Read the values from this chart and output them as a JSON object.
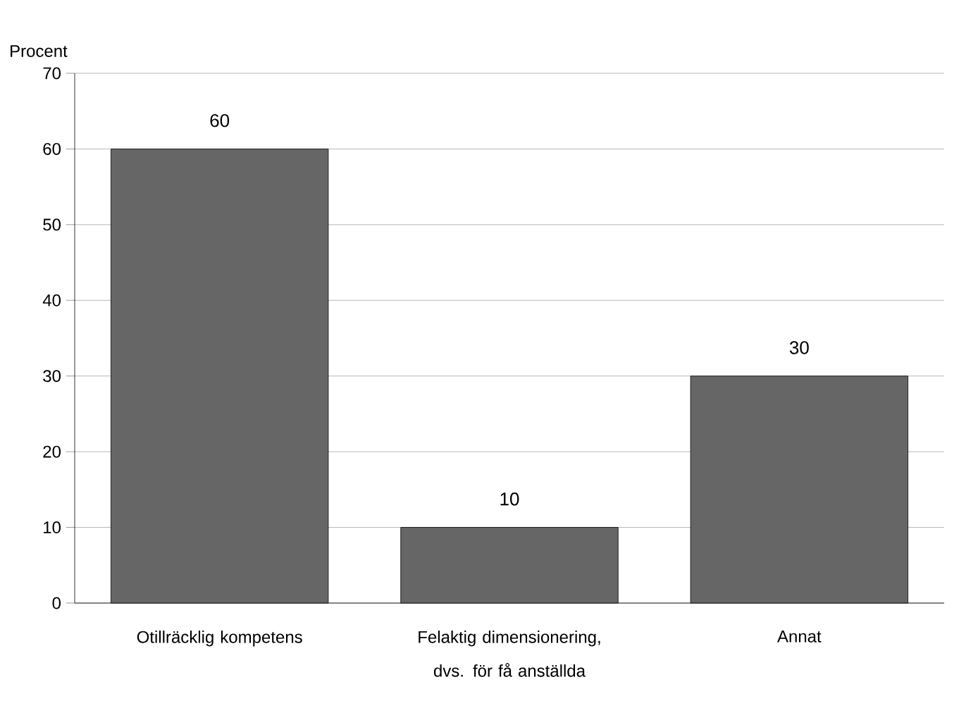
{
  "chart_data": {
    "type": "bar",
    "ylabel": "Procent",
    "categories": [
      "Otillräcklig kompetens",
      "Felaktig dimensionering, dvs. för få anställda",
      "Annat"
    ],
    "values": [
      60,
      10,
      30
    ],
    "color": "#666666",
    "ylim": [
      0,
      70
    ],
    "yticks": [
      0,
      10,
      20,
      30,
      40,
      50,
      60,
      70
    ],
    "grid": "y",
    "data_labels": true
  }
}
